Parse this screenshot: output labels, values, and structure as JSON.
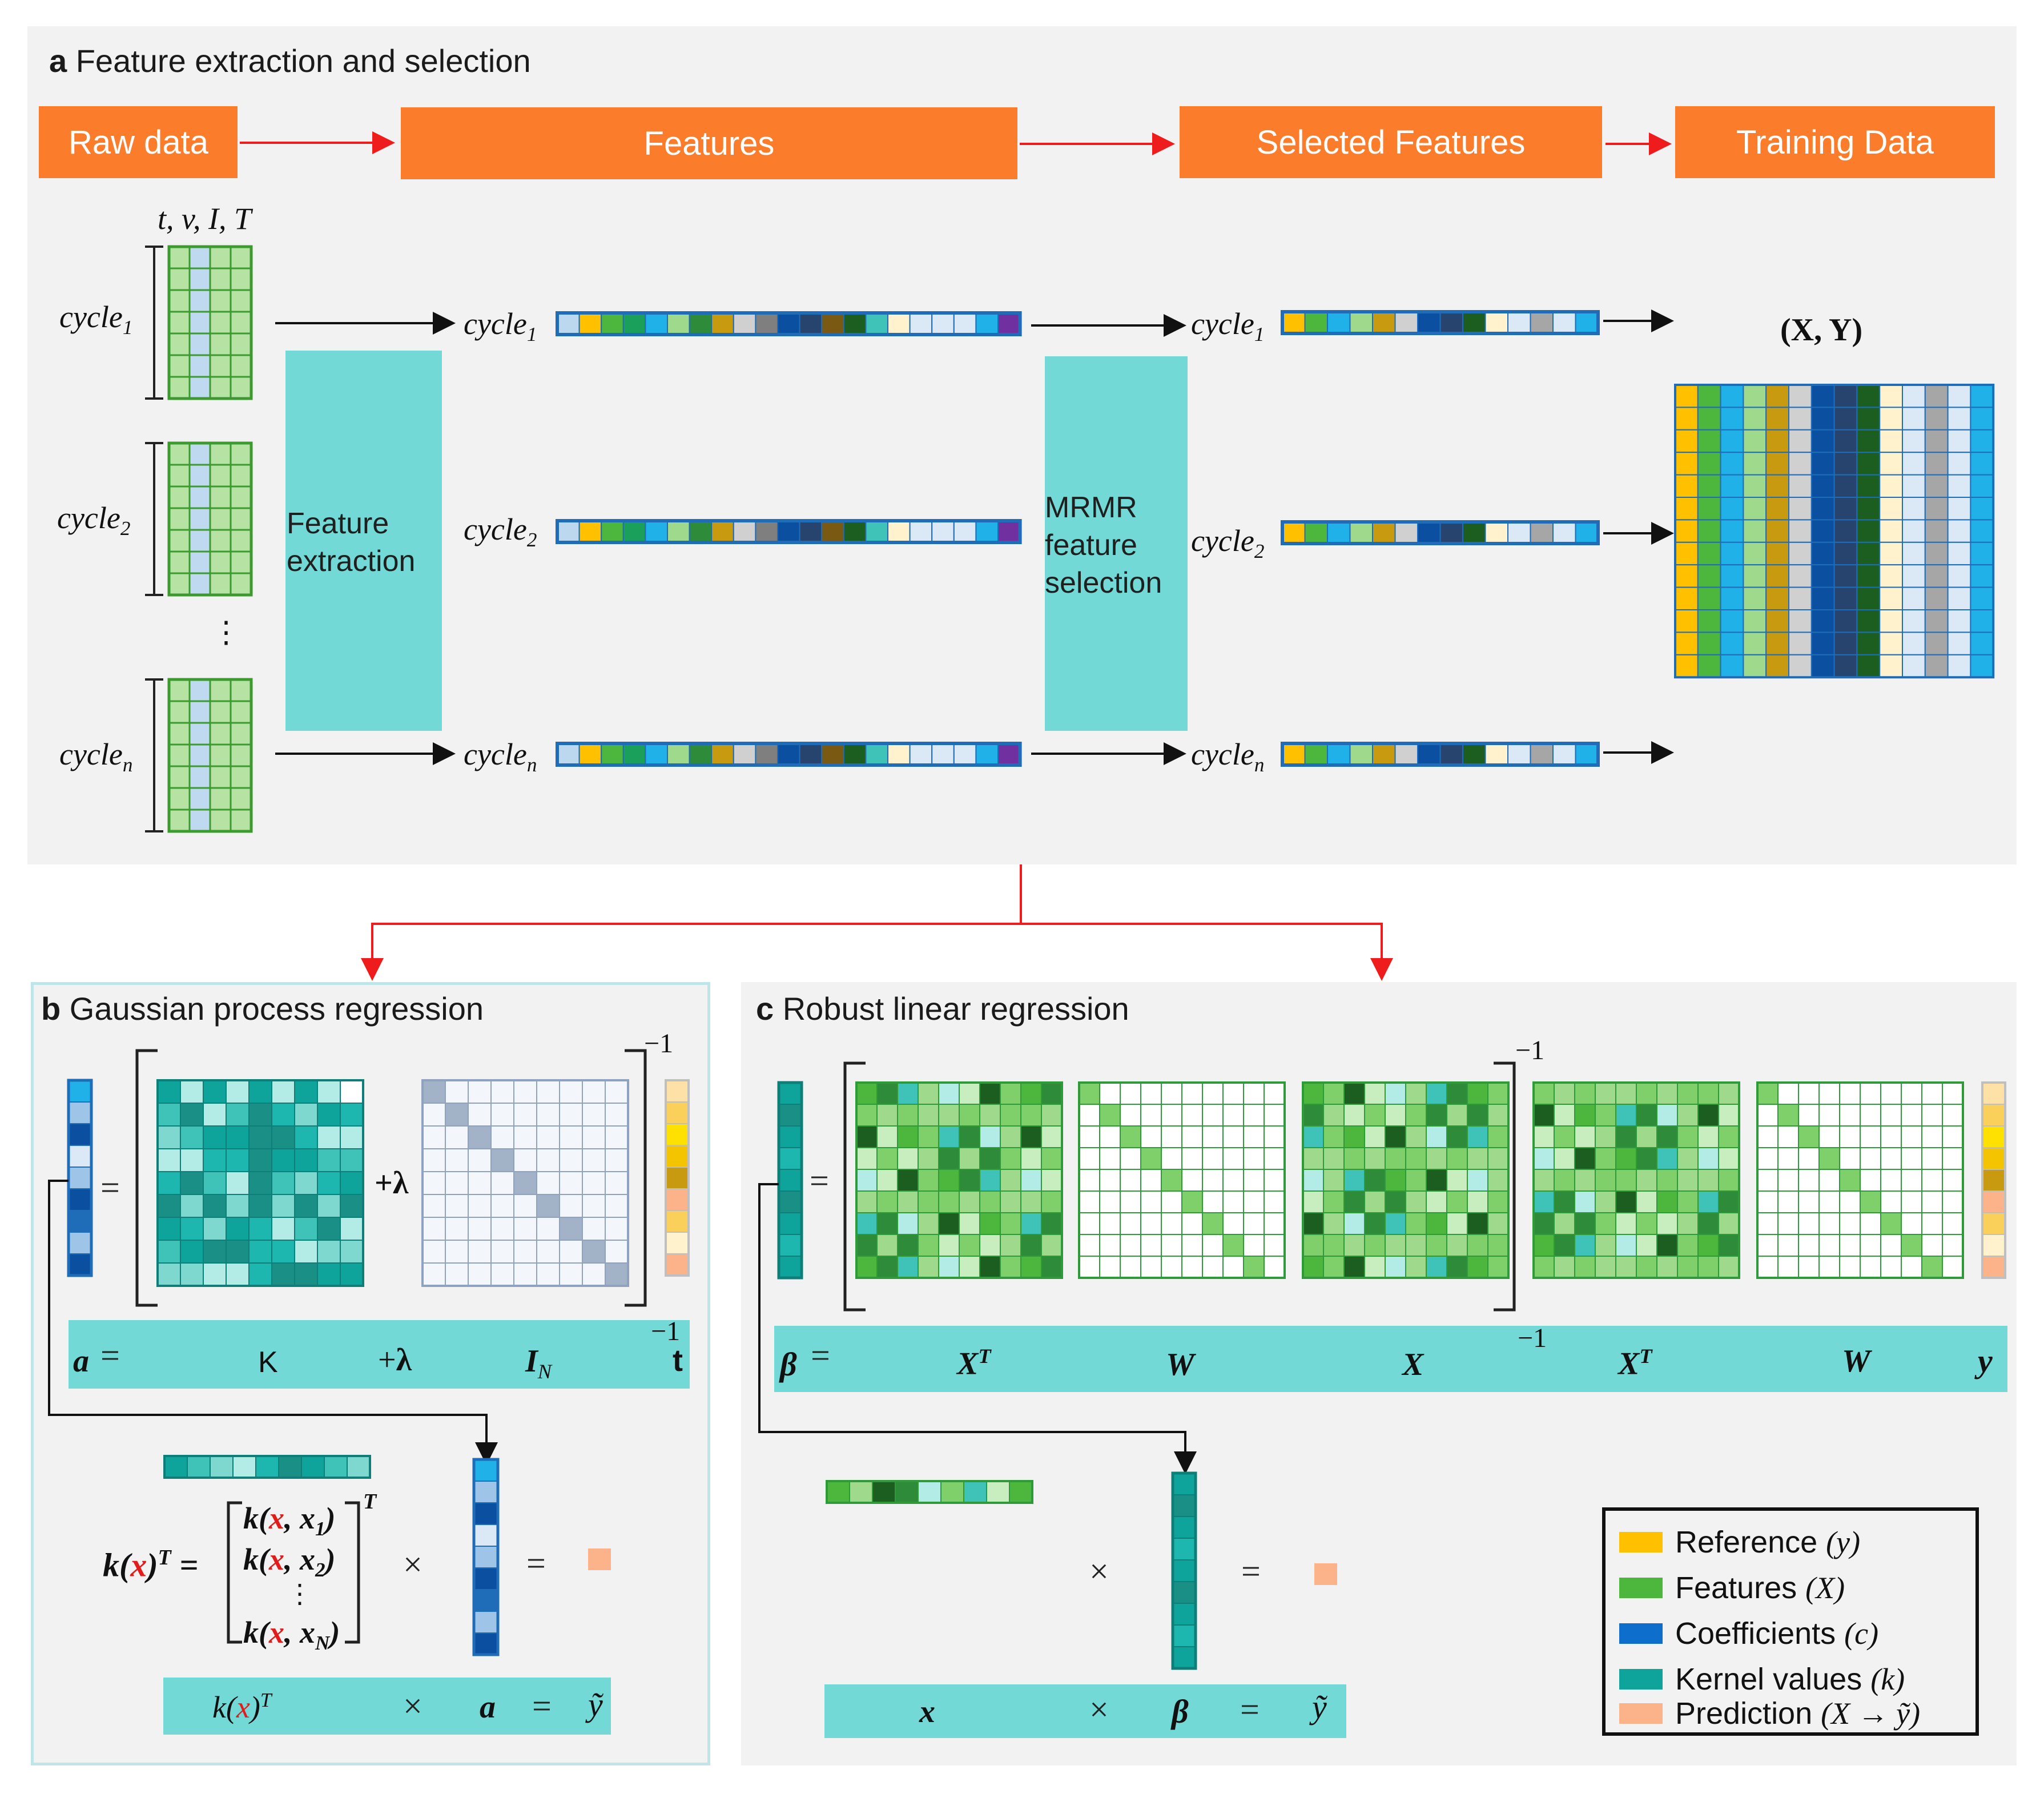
{
  "panel_a": {
    "letter": "a",
    "title": "Feature extraction and selection",
    "pipeline": [
      "Raw data",
      "Features",
      "Selected Features",
      "Training Data"
    ],
    "raw_vars": "t, v, I, T",
    "cycles": [
      {
        "base": "cycle",
        "sub": "1"
      },
      {
        "base": "cycle",
        "sub": "2"
      },
      {
        "base": "cycle",
        "sub": "n"
      }
    ],
    "vdots": "⋮",
    "extraction": [
      "Feature",
      "extraction"
    ],
    "selection": [
      "MRMR",
      "feature",
      "selection"
    ],
    "training_label": "(X, Y)"
  },
  "panel_b": {
    "letter": "b",
    "title": "Gaussian process regression",
    "exponent": "−1",
    "plus_lambda": "+λ",
    "equals": "=",
    "eq_a": {
      "lhs": "a",
      "eq": "=",
      "K": "K",
      "plus": "+",
      "lambda": "λ",
      "I": "I",
      "I_sub": "N",
      "exp": "−1",
      "rhs": "t"
    },
    "kernel_lhs": "k(x)",
    "kernel_sup": "T",
    "kernel_rows": [
      {
        "pre": "k(",
        "x": "x",
        "post": ", x",
        "sub": "1",
        "end": ")"
      },
      {
        "pre": "k(",
        "x": "x",
        "post": ", x",
        "sub": "2",
        "end": ")"
      },
      {
        "pre": "",
        "x": "",
        "post": "⋮",
        "sub": "",
        "end": ""
      },
      {
        "pre": "k(",
        "x": "x",
        "post": ", x",
        "sub": "N",
        "end": ")"
      }
    ],
    "times": "×",
    "eq_pred": {
      "k": "k(",
      "x": "x",
      "close": ")",
      "sup": "T",
      "times": "×",
      "a": "a",
      "eq": "=",
      "y": "ỹ"
    }
  },
  "panel_c": {
    "letter": "c",
    "title": "Robust linear regression",
    "exponent": "−1",
    "equals": "=",
    "eq_beta": {
      "lhs": "β",
      "eq": "=",
      "XT": "X",
      "XT_sup": "T",
      "W": "W",
      "X": "X",
      "exp": "−1",
      "XT2": "X",
      "XT2_sup": "T",
      "W2": "W",
      "y": "y"
    },
    "times": "×",
    "eq_pred": {
      "x": "x",
      "times": "×",
      "beta": "β",
      "eq": "=",
      "y": "ỹ"
    }
  },
  "legend": {
    "items": [
      {
        "label": "Reference",
        "sym": "(y)",
        "color": "#ffc000"
      },
      {
        "label": "Features",
        "sym": "(X)",
        "color": "#4db63d"
      },
      {
        "label": "Coefficients",
        "sym": "(c)",
        "color": "#0d6ecb"
      },
      {
        "label": "Kernel values",
        "sym": "(k)",
        "color": "#0fa49b"
      },
      {
        "label": "Prediction",
        "sym": "(X → ỹ)",
        "color": "#fcb389"
      }
    ]
  },
  "colors": {
    "orange": "#fb7d2b",
    "teal_box": "#72d9d6",
    "arrow_red": "#ee1c1c",
    "grid_green": "#3c9a2f",
    "grid_green_fill": "#b6e3a3",
    "grid_blue_fill": "#bfd9f0",
    "bar_border": "#1f6db8"
  }
}
